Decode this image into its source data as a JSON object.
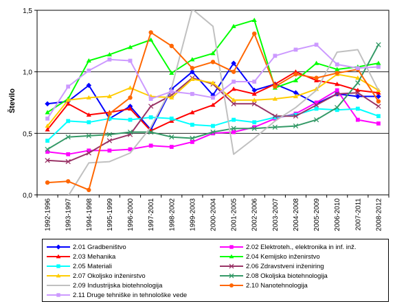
{
  "chart_data": {
    "type": "line",
    "title": "",
    "xlabel": "",
    "ylabel": "Število",
    "ylim": [
      0,
      1.5
    ],
    "yticks": [
      "0,0",
      "0,5",
      "1,0",
      "1,5"
    ],
    "grid": "horizontal at 0.5, 1.0, 1.5",
    "legend_position": "bottom",
    "categories": [
      "1992-1996",
      "1993-1997",
      "1994-1998",
      "1995-1999",
      "1996-2000",
      "1997-2001",
      "1998-2002",
      "1999-2003",
      "2000-2004",
      "2001-2005",
      "2002-2006",
      "2003-2007",
      "2004-2008",
      "2005-2009",
      "2006-2010",
      "2007-2011",
      "2008-2012"
    ],
    "series": [
      {
        "name": "2.01 Gradbeništvo",
        "color": "#0000FF",
        "marker": "diamond",
        "values": [
          0.74,
          0.76,
          0.89,
          0.62,
          0.72,
          0.53,
          0.86,
          1.0,
          0.81,
          1.07,
          0.85,
          0.9,
          0.83,
          0.74,
          0.82,
          0.8,
          0.8
        ]
      },
      {
        "name": "2.02 Elektroteh., elektronika in inf. inž.",
        "color": "#FF00FF",
        "marker": "square",
        "values": [
          0.35,
          0.33,
          0.36,
          0.36,
          0.37,
          0.4,
          0.39,
          0.43,
          0.5,
          0.51,
          0.55,
          0.62,
          0.66,
          0.75,
          0.85,
          0.61,
          0.58
        ]
      },
      {
        "name": "2.03 Mehanika",
        "color": "#FF0000",
        "marker": "triangle",
        "values": [
          0.53,
          0.74,
          0.65,
          0.67,
          0.7,
          0.52,
          0.6,
          0.67,
          0.73,
          0.86,
          0.82,
          0.9,
          1.0,
          0.93,
          0.9,
          0.85,
          0.83
        ]
      },
      {
        "name": "2.04 Kemijsko inženirstvo",
        "color": "#00FF00",
        "marker": "triangle",
        "values": [
          0.67,
          0.78,
          1.09,
          1.14,
          1.2,
          1.26,
          0.99,
          1.1,
          1.15,
          1.37,
          1.42,
          0.87,
          0.93,
          1.07,
          1.02,
          1.04,
          1.07
        ]
      },
      {
        "name": "2.05 Materiali",
        "color": "#00FFFF",
        "marker": "square",
        "values": [
          0.44,
          0.6,
          0.59,
          0.62,
          0.61,
          0.63,
          0.62,
          0.57,
          0.56,
          0.61,
          0.59,
          0.63,
          0.65,
          0.7,
          0.69,
          0.7,
          0.64
        ]
      },
      {
        "name": "2.06 Zdravstveni inženiring",
        "color": "#993366",
        "marker": "x",
        "values": [
          0.28,
          0.27,
          0.34,
          0.44,
          0.49,
          0.72,
          0.81,
          0.95,
          0.9,
          0.74,
          0.74,
          0.64,
          0.64,
          0.73,
          0.82,
          0.83,
          0.72
        ]
      },
      {
        "name": "2.07 Okoljsko inženirstvo",
        "color": "#FFCC00",
        "marker": "triangle",
        "values": [
          0.56,
          0.77,
          0.79,
          0.8,
          0.87,
          0.8,
          0.79,
          0.94,
          0.91,
          0.77,
          0.77,
          0.78,
          0.8,
          0.86,
          0.98,
          0.95,
          0.85
        ]
      },
      {
        "name": "2.08 Okoljska biotehnologija",
        "color": "#339966",
        "marker": "x",
        "values": [
          0.37,
          0.47,
          0.48,
          0.49,
          0.51,
          0.51,
          0.47,
          0.46,
          0.51,
          0.54,
          0.54,
          0.55,
          0.56,
          0.61,
          0.71,
          0.91,
          1.22
        ]
      },
      {
        "name": "2.09 Industrijska biotehnologija",
        "color": "#C0C0C0",
        "marker": "none",
        "values": [
          -0.02,
          -0.01,
          0.26,
          0.27,
          0.34,
          0.55,
          0.87,
          1.51,
          1.37,
          0.33,
          0.46,
          0.6,
          0.71,
          0.85,
          1.16,
          1.18,
          0.85
        ]
      },
      {
        "name": "2.10 Nanotehnologija",
        "color": "#FF6600",
        "marker": "circle",
        "values": [
          0.1,
          0.11,
          0.04,
          0.66,
          0.79,
          1.32,
          1.21,
          1.03,
          1.08,
          1.0,
          1.31,
          0.88,
          0.98,
          0.95,
          0.99,
          1.02,
          0.76
        ]
      },
      {
        "name": "2.11 Druge tehniške in tehnološke vede",
        "color": "#CC99FF",
        "marker": "square",
        "values": [
          0.62,
          0.88,
          1.01,
          1.1,
          1.09,
          0.78,
          0.84,
          0.82,
          0.79,
          0.92,
          0.92,
          1.13,
          1.18,
          1.22,
          1.06,
          1.03,
          1.04
        ]
      }
    ]
  }
}
